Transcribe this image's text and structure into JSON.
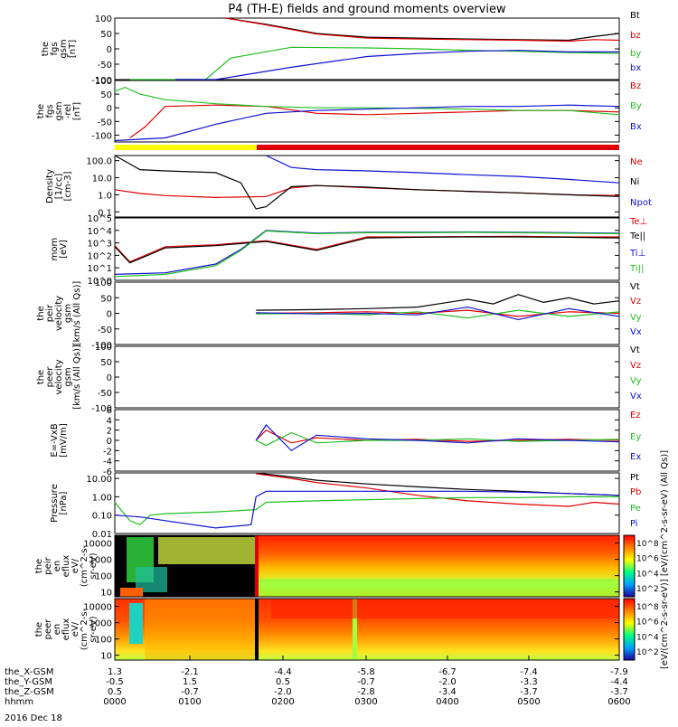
{
  "figure": {
    "title": "P4 (TH-E) fields and ground moments overview",
    "date": "2016 Dec 18"
  },
  "chart_data": [
    {
      "type": "line",
      "id": "fgs_gsm",
      "ylabel": [
        "the",
        "fgs",
        "gsm",
        "[nT]"
      ],
      "yticks": [
        "100",
        "50",
        "0",
        "-50",
        "-100"
      ],
      "ylim": [
        -100,
        100
      ],
      "series": [
        {
          "name": "Bt",
          "color": "#000000",
          "x": [
            0.22,
            0.3,
            0.4,
            0.5,
            0.6,
            0.7,
            0.8,
            0.9,
            0.95,
            1.0
          ],
          "y": [
            100,
            80,
            50,
            38,
            35,
            32,
            30,
            28,
            40,
            50
          ]
        },
        {
          "name": "bz",
          "color": "#e00000",
          "x": [
            0.22,
            0.3,
            0.4,
            0.5,
            0.6,
            0.7,
            0.8,
            0.9,
            0.95,
            1.0
          ],
          "y": [
            100,
            78,
            48,
            35,
            32,
            30,
            28,
            25,
            30,
            28
          ]
        },
        {
          "name": "by",
          "color": "#20c020",
          "x": [
            0.03,
            0.18,
            0.23,
            0.35,
            0.5,
            0.6,
            0.7,
            0.8,
            0.9,
            1.0
          ],
          "y": [
            -100,
            -100,
            -30,
            5,
            3,
            0,
            -5,
            -8,
            -12,
            -15
          ]
        },
        {
          "name": "bx",
          "color": "#1010d0",
          "x": [
            0.12,
            0.2,
            0.35,
            0.5,
            0.6,
            0.7,
            0.8,
            0.9,
            1.0
          ],
          "y": [
            -100,
            -100,
            -60,
            -25,
            -15,
            -8,
            -5,
            -10,
            -10
          ]
        }
      ]
    },
    {
      "type": "line",
      "id": "fgs_gsm_rel",
      "ylabel": [
        "the",
        "fgs",
        "gsm",
        "-rel",
        "[nT]"
      ],
      "yticks": [
        "100",
        "50",
        "0",
        "-50",
        "-100"
      ],
      "ylim": [
        -125,
        100
      ],
      "series": [
        {
          "name": "Bz",
          "color": "#e00000",
          "x": [
            0.03,
            0.06,
            0.1,
            0.2,
            0.3,
            0.4,
            0.5,
            0.6,
            0.7,
            0.8,
            0.9,
            1.0
          ],
          "y": [
            -110,
            -70,
            5,
            10,
            5,
            -20,
            -25,
            -20,
            -15,
            -10,
            -10,
            -15
          ]
        },
        {
          "name": "By",
          "color": "#20c020",
          "x": [
            0.0,
            0.02,
            0.05,
            0.1,
            0.2,
            0.3,
            0.4,
            0.5,
            0.6,
            0.7,
            0.8,
            0.9,
            1.0
          ],
          "y": [
            60,
            75,
            50,
            30,
            15,
            5,
            0,
            0,
            -2,
            -5,
            -10,
            -10,
            -25
          ]
        },
        {
          "name": "Bx",
          "color": "#1010d0",
          "x": [
            0.0,
            0.1,
            0.2,
            0.3,
            0.4,
            0.5,
            0.6,
            0.7,
            0.8,
            0.9,
            1.0
          ],
          "y": [
            -120,
            -110,
            -60,
            -20,
            -10,
            -5,
            0,
            5,
            5,
            10,
            5
          ]
        }
      ]
    },
    {
      "type": "line",
      "id": "density",
      "ylabel": [
        "Density",
        "[1/cc]",
        "[cm-3]"
      ],
      "yticks": [
        "100.0",
        "10.0",
        "1.0",
        "0.1"
      ],
      "yscale": "log",
      "ylim": [
        0.05,
        200
      ],
      "series": [
        {
          "name": "Ne",
          "color": "#e00000",
          "x": [
            0.0,
            0.05,
            0.1,
            0.2,
            0.3,
            0.35,
            0.4,
            0.45,
            0.5,
            0.6,
            0.7,
            0.8,
            0.9,
            1.0
          ],
          "y": [
            2,
            1.2,
            0.9,
            0.7,
            0.8,
            2.5,
            3.5,
            3.0,
            2.6,
            2.0,
            1.6,
            1.3,
            1.0,
            0.9
          ]
        },
        {
          "name": "Ni",
          "color": "#000000",
          "x": [
            0.0,
            0.05,
            0.1,
            0.2,
            0.25,
            0.28,
            0.3,
            0.35,
            0.4,
            0.5,
            0.6,
            0.7,
            0.8,
            0.9,
            1.0
          ],
          "y": [
            200,
            30,
            25,
            20,
            5,
            0.15,
            0.2,
            3,
            3.5,
            2.8,
            2.0,
            1.6,
            1.3,
            1.0,
            0.8
          ]
        },
        {
          "name": "Npot",
          "color": "#1010d0",
          "x": [
            0.3,
            0.35,
            0.4,
            0.5,
            0.6,
            0.7,
            0.8,
            0.9,
            1.0
          ],
          "y": [
            200,
            40,
            30,
            25,
            20,
            15,
            12,
            8,
            5
          ]
        }
      ]
    },
    {
      "type": "line",
      "id": "temperature",
      "ylabel": [
        "mom",
        "[eV]"
      ],
      "yticks": [
        "10^5",
        "10^4",
        "10^3",
        "10^2",
        "10^1",
        "10^0"
      ],
      "yscale": "log",
      "ylim": [
        1,
        100000
      ],
      "series": [
        {
          "name": "Te⊥",
          "color": "#e00000",
          "x": [
            0.0,
            0.03,
            0.07,
            0.1,
            0.2,
            0.3,
            0.4,
            0.5,
            0.6,
            0.7,
            0.8,
            0.9,
            1.0
          ],
          "y": [
            600,
            30,
            150,
            500,
            700,
            1500,
            300,
            3000,
            3000,
            3200,
            3300,
            3000,
            3000
          ]
        },
        {
          "name": "Te||",
          "color": "#000000",
          "x": [
            0.0,
            0.03,
            0.07,
            0.1,
            0.2,
            0.3,
            0.4,
            0.5,
            0.6,
            0.7,
            0.8,
            0.9,
            1.0
          ],
          "y": [
            500,
            25,
            120,
            400,
            600,
            1300,
            250,
            2500,
            2800,
            3000,
            3000,
            2800,
            2500
          ]
        },
        {
          "name": "Ti⊥",
          "color": "#1010d0",
          "x": [
            0.0,
            0.1,
            0.2,
            0.25,
            0.3,
            0.4,
            0.5,
            0.6,
            0.7,
            0.8,
            0.9,
            1.0
          ],
          "y": [
            3,
            4,
            20,
            300,
            10000,
            6000,
            7000,
            7000,
            7500,
            7000,
            6500,
            6000
          ]
        },
        {
          "name": "Ti||",
          "color": "#20c020",
          "x": [
            0.0,
            0.1,
            0.2,
            0.25,
            0.3,
            0.4,
            0.5,
            0.6,
            0.7,
            0.8,
            0.9,
            1.0
          ],
          "y": [
            2,
            3,
            15,
            250,
            9000,
            5500,
            6500,
            6500,
            7000,
            6500,
            6000,
            5500
          ]
        }
      ]
    },
    {
      "type": "line",
      "id": "peir_velocity",
      "ylabel": [
        "the",
        "peir",
        "velocity",
        "gsm",
        "[km/s (All Qs)]"
      ],
      "yticks": [
        "100",
        "50",
        "0",
        "-50",
        "-100"
      ],
      "ylim": [
        -100,
        100
      ],
      "series": [
        {
          "name": "Vt",
          "color": "#000000",
          "x": [
            0.28,
            0.4,
            0.5,
            0.6,
            0.7,
            0.75,
            0.8,
            0.85,
            0.9,
            0.95,
            1.0
          ],
          "y": [
            10,
            12,
            15,
            20,
            45,
            30,
            60,
            35,
            50,
            30,
            40
          ]
        },
        {
          "name": "Vz",
          "color": "#e00000",
          "x": [
            0.28,
            0.4,
            0.5,
            0.6,
            0.7,
            0.8,
            0.9,
            1.0
          ],
          "y": [
            0,
            2,
            5,
            0,
            10,
            -10,
            5,
            0
          ]
        },
        {
          "name": "Vy",
          "color": "#20c020",
          "x": [
            0.28,
            0.4,
            0.5,
            0.6,
            0.7,
            0.8,
            0.9,
            1.0
          ],
          "y": [
            -2,
            0,
            -5,
            5,
            -15,
            10,
            -10,
            5
          ]
        },
        {
          "name": "Vx",
          "color": "#1010d0",
          "x": [
            0.28,
            0.4,
            0.5,
            0.6,
            0.7,
            0.8,
            0.9,
            1.0
          ],
          "y": [
            2,
            -2,
            0,
            -5,
            20,
            -20,
            15,
            -10
          ]
        }
      ]
    },
    {
      "type": "line",
      "id": "peer_velocity",
      "ylabel": [
        "the",
        "peer",
        "velocity",
        "gsm",
        "[km/s (All Qs)]"
      ],
      "yticks": [
        "100",
        "50",
        "0",
        "-50",
        "-100"
      ],
      "ylim": [
        -100,
        100
      ],
      "series": [
        {
          "name": "Vt",
          "color": "#000000",
          "x": [],
          "y": []
        },
        {
          "name": "Vz",
          "color": "#e00000",
          "x": [],
          "y": []
        },
        {
          "name": "Vy",
          "color": "#20c020",
          "x": [],
          "y": []
        },
        {
          "name": "Vx",
          "color": "#1010d0",
          "x": [],
          "y": []
        }
      ]
    },
    {
      "type": "line",
      "id": "efield",
      "ylabel": [
        "E=-VxB",
        "[mV/m]"
      ],
      "yticks": [
        "6",
        "4",
        "2",
        "0",
        "-2",
        "-4",
        "-6"
      ],
      "ylim": [
        -6,
        6
      ],
      "series": [
        {
          "name": "Ez",
          "color": "#e00000",
          "x": [
            0.28,
            0.3,
            0.35,
            0.4,
            0.5,
            0.6,
            0.7,
            0.8,
            0.9,
            1.0
          ],
          "y": [
            0,
            2,
            -0.5,
            0.5,
            0,
            0.2,
            -0.2,
            0,
            0.2,
            0
          ]
        },
        {
          "name": "Ey",
          "color": "#20c020",
          "x": [
            0.28,
            0.3,
            0.35,
            0.4,
            0.5,
            0.6,
            0.7,
            0.8,
            0.9,
            1.0
          ],
          "y": [
            0,
            -1,
            1.5,
            -0.5,
            0,
            0,
            0.3,
            -0.2,
            0,
            0.2
          ]
        },
        {
          "name": "Ex",
          "color": "#1010d0",
          "x": [
            0.28,
            0.3,
            0.35,
            0.4,
            0.5,
            0.6,
            0.7,
            0.8,
            0.9,
            1.0
          ],
          "y": [
            0,
            3,
            -2,
            1,
            0.3,
            0,
            -0.5,
            0.3,
            0,
            -0.3
          ]
        }
      ]
    },
    {
      "type": "line",
      "id": "pressure",
      "ylabel": [
        "Pressure",
        "[nPa]"
      ],
      "yticks": [
        "10.00",
        "1.00",
        "0.10",
        "0.01"
      ],
      "yscale": "log",
      "ylim": [
        0.01,
        20
      ],
      "series": [
        {
          "name": "Pt",
          "color": "#000000",
          "x": [
            0.28,
            0.35,
            0.4,
            0.5,
            0.6,
            0.7,
            0.8,
            0.9,
            1.0
          ],
          "y": [
            20,
            12,
            8,
            5,
            3.5,
            2.5,
            2.0,
            1.5,
            1.2
          ]
        },
        {
          "name": "Pb",
          "color": "#e00000",
          "x": [
            0.28,
            0.35,
            0.4,
            0.5,
            0.6,
            0.7,
            0.8,
            0.9,
            0.95,
            1.0
          ],
          "y": [
            18,
            10,
            6,
            3,
            1.2,
            0.6,
            0.4,
            0.3,
            0.5,
            0.4
          ]
        },
        {
          "name": "Pe",
          "color": "#20c020",
          "x": [
            0.0,
            0.03,
            0.05,
            0.07,
            0.1,
            0.2,
            0.28,
            0.3,
            0.4,
            0.5,
            0.6,
            0.7,
            0.8,
            0.9,
            1.0
          ],
          "y": [
            0.5,
            0.05,
            0.03,
            0.1,
            0.12,
            0.15,
            0.2,
            0.5,
            0.6,
            0.7,
            0.8,
            0.9,
            0.9,
            1.0,
            1.0
          ]
        },
        {
          "name": "Pi",
          "color": "#1010d0",
          "x": [
            0.0,
            0.05,
            0.1,
            0.2,
            0.27,
            0.28,
            0.3,
            0.4,
            0.5,
            0.6,
            0.7,
            0.8,
            0.9,
            1.0
          ],
          "y": [
            0.1,
            0.08,
            0.05,
            0.02,
            0.03,
            1.0,
            2.0,
            2.0,
            2.0,
            2.0,
            2.0,
            1.8,
            1.5,
            1.2
          ]
        }
      ]
    },
    {
      "type": "heatmap",
      "id": "peir_flux",
      "ylabel": [
        "the",
        "peir",
        "en",
        "eflux",
        "eV/",
        "(cm^2-s-",
        "sr-eV)"
      ],
      "yticks": [
        "10000",
        "1000",
        "100",
        "10"
      ],
      "yscale": "log",
      "ylim": [
        5,
        30000
      ]
    },
    {
      "type": "heatmap",
      "id": "peer_flux",
      "ylabel": [
        "the",
        "peer",
        "en",
        "eflux",
        "eV/",
        "(cm^2-s-",
        "sr-eV)"
      ],
      "yticks": [
        "10000",
        "1000",
        "100",
        "10"
      ],
      "yscale": "log",
      "ylim": [
        5,
        30000
      ]
    }
  ],
  "colorbar": {
    "label": "[eV/(cm^2-s-sr-eV)] [eV/(cm^2-s-sr-eV) (All Qs)]",
    "ticks": [
      "10^8",
      "10^6",
      "10^4",
      "10^2"
    ]
  },
  "xaxis": {
    "rows": [
      {
        "label": "the_X-GSM",
        "values": [
          "1.3",
          "-2.1",
          "-4.4",
          "-5.8",
          "-6.7",
          "-7.4",
          "-7.9"
        ]
      },
      {
        "label": "the_Y-GSM",
        "values": [
          "-0.5",
          "1.5",
          "0.5",
          "-0.7",
          "-2.0",
          "-3.3",
          "-4.4"
        ]
      },
      {
        "label": "the_Z-GSM",
        "values": [
          "0.5",
          "-0.7",
          "-2.0",
          "-2.8",
          "-3.4",
          "-3.7",
          "-3.7"
        ]
      },
      {
        "label": "hhmm",
        "values": [
          "0000",
          "0100",
          "0200",
          "0300",
          "0400",
          "0500",
          "0600"
        ]
      }
    ]
  }
}
